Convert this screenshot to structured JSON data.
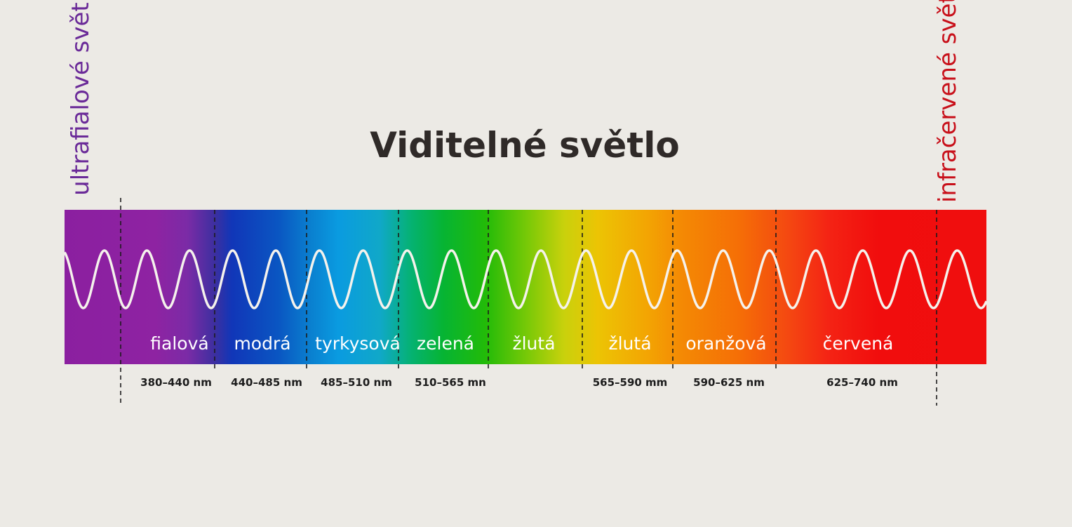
{
  "title": "Viditelné světlo",
  "uv_label": "ultrafialové světlo",
  "ir_label": "infračervené světlo",
  "bands": [
    {
      "name": "fialová",
      "range": "380–440 nm"
    },
    {
      "name": "modrá",
      "range": "440–485 nm"
    },
    {
      "name": "tyrkysová",
      "range": "485–510 nm"
    },
    {
      "name": "zelená",
      "range": "510–565 mn"
    },
    {
      "name": "žlutá",
      "range": ""
    },
    {
      "name": "žlutá",
      "range": "565–590 mm"
    },
    {
      "name": "oranžová",
      "range": "590–625 nm"
    },
    {
      "name": "červená",
      "range": "625–740 nm"
    }
  ],
  "colors": {
    "title": "#2f2a28",
    "uv": "#6a2a98",
    "ir": "#c8101a",
    "wave": "#f5f2ec",
    "divider": "#1c1c1c"
  }
}
